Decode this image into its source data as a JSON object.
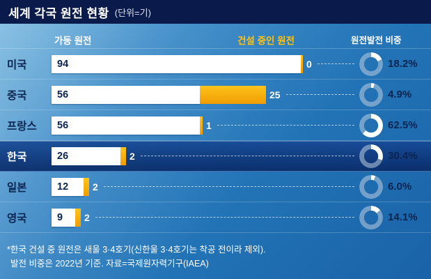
{
  "header": {
    "title": "세계 각국 원전 현황",
    "unit": "(단위=기)"
  },
  "columns": {
    "operating": "가동 원전",
    "construction": "건설 중인 원전",
    "share": "원전발전 비중"
  },
  "chart_data": {
    "type": "bar",
    "title": "세계 각국 원전 현황 (단위=기)",
    "categories": [
      "미국",
      "중국",
      "프랑스",
      "한국",
      "일본",
      "영국"
    ],
    "series": [
      {
        "name": "가동 원전",
        "values": [
          94,
          56,
          56,
          26,
          12,
          9
        ]
      },
      {
        "name": "건설 중인 원전",
        "values": [
          0,
          25,
          1,
          2,
          2,
          2
        ]
      },
      {
        "name": "원전발전 비중(%)",
        "values": [
          18.2,
          4.9,
          62.5,
          30.4,
          6.0,
          14.1
        ]
      }
    ],
    "share_labels": [
      "18.2%",
      "4.9%",
      "62.5%",
      "30.4%",
      "6.0%",
      "14.1%"
    ],
    "highlight_category": "한국",
    "xmax": 94,
    "legend_position": "top",
    "grid": false
  },
  "footnote": {
    "line1": "*한국 건설 중 원전은 새울 3·4호기(신한울 3·4호기는 착공 전이라 제외).",
    "line2": "발전 비중은 2022년 기준. 자료=국제원자력기구(IAEA)"
  },
  "colors": {
    "title_bar_bg": "#0a1a4a",
    "background_blue": "#2273b6",
    "operating_bar": "#ffffff",
    "construction_bar": "#f7a600",
    "construction_header_text": "#ffc20e",
    "label_navy": "#0b2450",
    "highlight_row": "#0d3a80",
    "donut_fill": "#ffffff"
  }
}
